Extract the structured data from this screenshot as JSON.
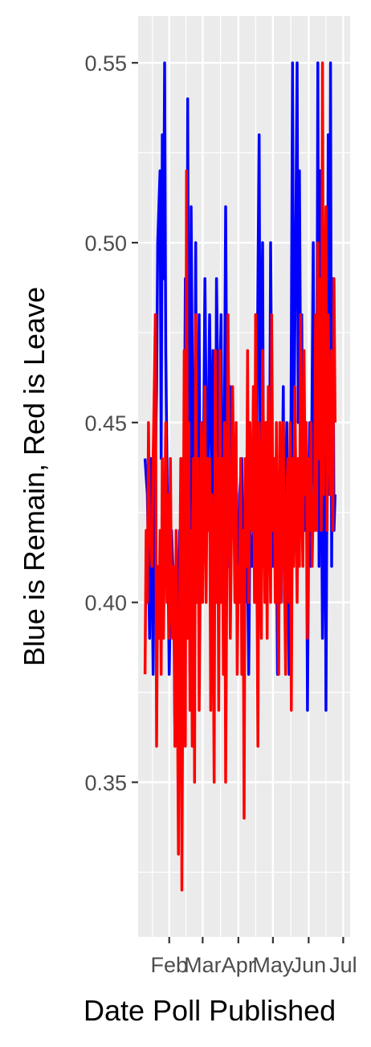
{
  "chart_data": {
    "type": "line",
    "title": "",
    "xlabel": "Date Poll Published",
    "ylabel": "Blue is Remain, Red is Leave",
    "x_tick_labels": [
      "Feb",
      "Mar",
      "Apr",
      "May",
      "Jun",
      "Jul"
    ],
    "x_tick_days": [
      31,
      60,
      91,
      121,
      152,
      182
    ],
    "xlim": [
      4,
      188
    ],
    "y_ticks": [
      0.35,
      0.4,
      0.45,
      0.5,
      0.55
    ],
    "y_tick_labels": [
      "0.35",
      "0.40",
      "0.45",
      "0.50",
      "0.55"
    ],
    "ylim": [
      0.307,
      0.563
    ],
    "x_unit": "day of year 2016",
    "series": [
      {
        "name": "Remain",
        "color": "#0000FF",
        "x": [
          10,
          12,
          14,
          15,
          17,
          18,
          20,
          21,
          23,
          24,
          25,
          26,
          27,
          28,
          30,
          31,
          33,
          35,
          36,
          38,
          40,
          42,
          43,
          44,
          45,
          46,
          47,
          48,
          49,
          50,
          52,
          53,
          54,
          55,
          57,
          58,
          60,
          62,
          64,
          66,
          67,
          68,
          69,
          71,
          72,
          74,
          76,
          77,
          78,
          80,
          81,
          82,
          84,
          85,
          87,
          89,
          90,
          92,
          94,
          95,
          97,
          99,
          100,
          101,
          103,
          104,
          106,
          107,
          109,
          110,
          112,
          113,
          115,
          116,
          118,
          119,
          121,
          122,
          124,
          125,
          127,
          128,
          130,
          131,
          133,
          135,
          136,
          138,
          139,
          141,
          142,
          143,
          144,
          145,
          146,
          147,
          148,
          149,
          150,
          151,
          152,
          153,
          154,
          155,
          156,
          157,
          158,
          159,
          160,
          161,
          162,
          163,
          164,
          165,
          166,
          167,
          168,
          169,
          170,
          171,
          172,
          173,
          174,
          175
        ],
        "y": [
          0.44,
          0.43,
          0.39,
          0.44,
          0.38,
          0.42,
          0.46,
          0.5,
          0.52,
          0.44,
          0.53,
          0.49,
          0.55,
          0.47,
          0.41,
          0.38,
          0.42,
          0.4,
          0.36,
          0.39,
          0.42,
          0.41,
          0.44,
          0.43,
          0.49,
          0.4,
          0.54,
          0.45,
          0.38,
          0.51,
          0.42,
          0.43,
          0.5,
          0.4,
          0.48,
          0.4,
          0.41,
          0.49,
          0.42,
          0.48,
          0.45,
          0.43,
          0.47,
          0.41,
          0.49,
          0.44,
          0.48,
          0.43,
          0.4,
          0.51,
          0.45,
          0.41,
          0.46,
          0.44,
          0.42,
          0.43,
          0.4,
          0.43,
          0.44,
          0.41,
          0.4,
          0.41,
          0.38,
          0.42,
          0.41,
          0.42,
          0.4,
          0.45,
          0.53,
          0.44,
          0.5,
          0.41,
          0.45,
          0.42,
          0.43,
          0.5,
          0.41,
          0.44,
          0.42,
          0.38,
          0.43,
          0.4,
          0.46,
          0.4,
          0.45,
          0.38,
          0.4,
          0.55,
          0.44,
          0.51,
          0.55,
          0.45,
          0.52,
          0.46,
          0.48,
          0.43,
          0.45,
          0.42,
          0.44,
          0.37,
          0.42,
          0.45,
          0.41,
          0.46,
          0.5,
          0.43,
          0.47,
          0.44,
          0.55,
          0.41,
          0.52,
          0.44,
          0.39,
          0.42,
          0.48,
          0.37,
          0.44,
          0.53,
          0.43,
          0.55,
          0.41,
          0.49,
          0.42,
          0.43
        ]
      },
      {
        "name": "Leave",
        "color": "#FF0000",
        "x": [
          10,
          11,
          12,
          13,
          14,
          16,
          17,
          19,
          20,
          21,
          22,
          23,
          24,
          25,
          26,
          27,
          28,
          29,
          30,
          31,
          32,
          33,
          34,
          35,
          36,
          37,
          38,
          39,
          40,
          41,
          42,
          43,
          44,
          45,
          46,
          47,
          48,
          49,
          50,
          51,
          52,
          53,
          54,
          55,
          56,
          57,
          58,
          59,
          60,
          61,
          62,
          63,
          64,
          65,
          66,
          67,
          68,
          69,
          70,
          71,
          72,
          73,
          74,
          75,
          76,
          77,
          78,
          79,
          80,
          81,
          82,
          83,
          84,
          85,
          86,
          87,
          88,
          89,
          90,
          91,
          92,
          93,
          94,
          95,
          96,
          97,
          98,
          99,
          100,
          101,
          102,
          103,
          104,
          105,
          106,
          107,
          108,
          109,
          110,
          111,
          112,
          113,
          114,
          115,
          116,
          117,
          118,
          119,
          120,
          121,
          122,
          123,
          124,
          125,
          126,
          127,
          128,
          129,
          130,
          131,
          132,
          133,
          134,
          135,
          136,
          137,
          138,
          139,
          140,
          141,
          142,
          143,
          144,
          145,
          146,
          147,
          148,
          149,
          150,
          151,
          152,
          153,
          154,
          155,
          156,
          157,
          158,
          159,
          160,
          161,
          162,
          163,
          164,
          165,
          166,
          167,
          168,
          169,
          170,
          171,
          172,
          173,
          174,
          175
        ],
        "y": [
          0.38,
          0.42,
          0.4,
          0.45,
          0.42,
          0.41,
          0.44,
          0.48,
          0.36,
          0.41,
          0.39,
          0.42,
          0.38,
          0.44,
          0.39,
          0.42,
          0.45,
          0.4,
          0.43,
          0.39,
          0.44,
          0.4,
          0.39,
          0.41,
          0.36,
          0.42,
          0.38,
          0.33,
          0.4,
          0.44,
          0.32,
          0.4,
          0.47,
          0.36,
          0.52,
          0.39,
          0.45,
          0.37,
          0.42,
          0.36,
          0.44,
          0.35,
          0.48,
          0.4,
          0.44,
          0.37,
          0.41,
          0.45,
          0.4,
          0.43,
          0.46,
          0.4,
          0.44,
          0.42,
          0.44,
          0.37,
          0.43,
          0.4,
          0.35,
          0.47,
          0.4,
          0.44,
          0.37,
          0.47,
          0.4,
          0.44,
          0.38,
          0.45,
          0.35,
          0.41,
          0.48,
          0.44,
          0.39,
          0.42,
          0.46,
          0.43,
          0.4,
          0.45,
          0.38,
          0.41,
          0.4,
          0.44,
          0.38,
          0.42,
          0.34,
          0.44,
          0.41,
          0.47,
          0.4,
          0.45,
          0.43,
          0.42,
          0.46,
          0.4,
          0.48,
          0.41,
          0.36,
          0.45,
          0.42,
          0.39,
          0.47,
          0.44,
          0.4,
          0.45,
          0.39,
          0.46,
          0.43,
          0.4,
          0.48,
          0.42,
          0.44,
          0.4,
          0.45,
          0.41,
          0.38,
          0.45,
          0.4,
          0.42,
          0.45,
          0.41,
          0.38,
          0.43,
          0.44,
          0.4,
          0.45,
          0.37,
          0.44,
          0.41,
          0.46,
          0.43,
          0.4,
          0.44,
          0.41,
          0.48,
          0.43,
          0.41,
          0.47,
          0.43,
          0.45,
          0.39,
          0.44,
          0.42,
          0.45,
          0.41,
          0.43,
          0.42,
          0.48,
          0.42,
          0.5,
          0.44,
          0.49,
          0.42,
          0.55,
          0.43,
          0.47,
          0.51,
          0.42,
          0.48,
          0.45,
          0.43,
          0.47,
          0.42,
          0.49,
          0.45
        ]
      }
    ]
  }
}
